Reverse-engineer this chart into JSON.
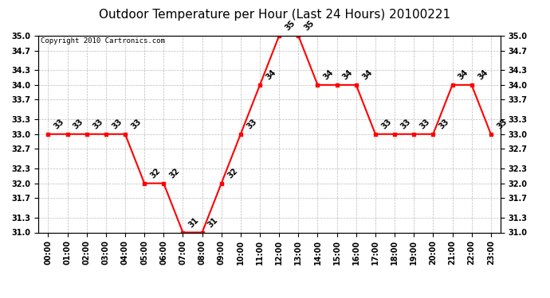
{
  "title": "Outdoor Temperature per Hour (Last 24 Hours) 20100221",
  "copyright": "Copyright 2010 Cartronics.com",
  "hours": [
    "00:00",
    "01:00",
    "02:00",
    "03:00",
    "04:00",
    "05:00",
    "06:00",
    "07:00",
    "08:00",
    "09:00",
    "10:00",
    "11:00",
    "12:00",
    "13:00",
    "14:00",
    "15:00",
    "16:00",
    "17:00",
    "18:00",
    "19:00",
    "20:00",
    "21:00",
    "22:00",
    "23:00"
  ],
  "temps": [
    33,
    33,
    33,
    33,
    33,
    32,
    32,
    31,
    31,
    32,
    33,
    34,
    35,
    35,
    34,
    34,
    34,
    33,
    33,
    33,
    33,
    34,
    34,
    33
  ],
  "ylim_min": 31.0,
  "ylim_max": 35.0,
  "yticks": [
    31.0,
    31.3,
    31.7,
    32.0,
    32.3,
    32.7,
    33.0,
    33.3,
    33.7,
    34.0,
    34.3,
    34.7,
    35.0
  ],
  "line_color": "red",
  "marker_color": "red",
  "grid_color": "#bbbbbb",
  "bg_color": "white",
  "title_fontsize": 11,
  "copyright_fontsize": 6.5,
  "label_fontsize": 7,
  "annotation_fontsize": 7
}
